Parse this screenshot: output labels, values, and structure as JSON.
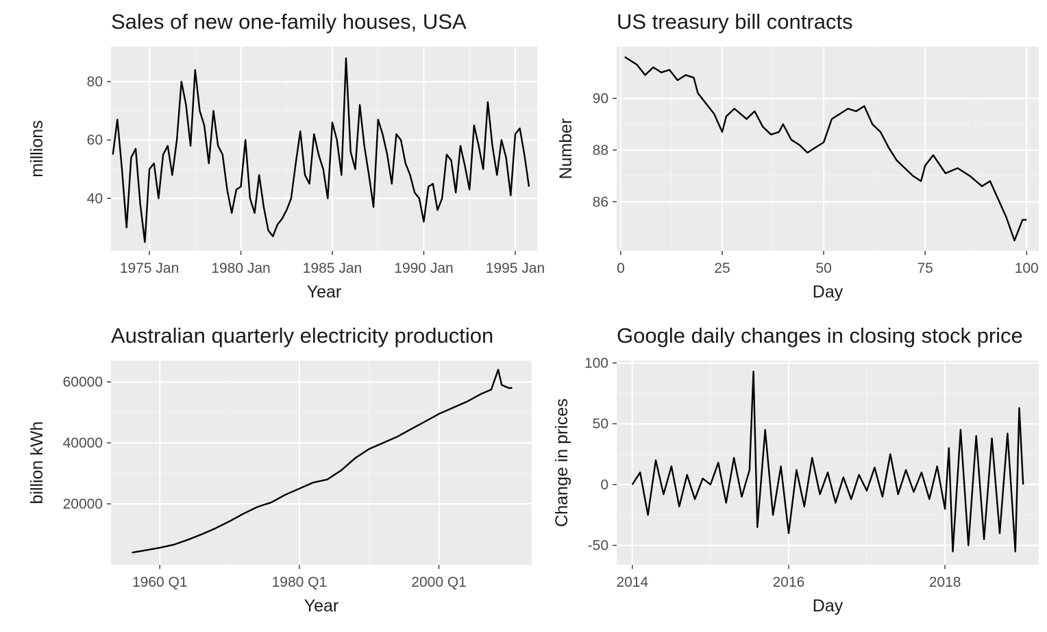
{
  "chart_data": [
    {
      "type": "line",
      "title": "Sales of new one-family houses, USA",
      "xlabel": "Year",
      "ylabel": "millions",
      "x_ticks": [
        "1975 Jan",
        "1980 Jan",
        "1985 Jan",
        "1990 Jan",
        "1995 Jan"
      ],
      "y_ticks": [
        "40",
        "60",
        "80"
      ],
      "xlim": [
        1972.9,
        1996.2
      ],
      "ylim": [
        22,
        92
      ],
      "grid": true,
      "series": [
        {
          "x": [
            1973.0,
            1973.25,
            1973.5,
            1973.75,
            1974.0,
            1974.25,
            1974.5,
            1974.75,
            1975.0,
            1975.25,
            1975.5,
            1975.75,
            1976.0,
            1976.25,
            1976.5,
            1976.75,
            1977.0,
            1977.25,
            1977.5,
            1977.75,
            1978.0,
            1978.25,
            1978.5,
            1978.75,
            1979.0,
            1979.25,
            1979.5,
            1979.75,
            1980.0,
            1980.25,
            1980.5,
            1980.75,
            1981.0,
            1981.25,
            1981.5,
            1981.75,
            1982.0,
            1982.25,
            1982.5,
            1982.75,
            1983.0,
            1983.25,
            1983.5,
            1983.75,
            1984.0,
            1984.25,
            1984.5,
            1984.75,
            1985.0,
            1985.25,
            1985.5,
            1985.75,
            1986.0,
            1986.25,
            1986.5,
            1986.75,
            1987.0,
            1987.25,
            1987.5,
            1987.75,
            1988.0,
            1988.25,
            1988.5,
            1988.75,
            1989.0,
            1989.25,
            1989.5,
            1989.75,
            1990.0,
            1990.25,
            1990.5,
            1990.75,
            1991.0,
            1991.25,
            1991.5,
            1991.75,
            1992.0,
            1992.25,
            1992.5,
            1992.75,
            1993.0,
            1993.25,
            1993.5,
            1993.75,
            1994.0,
            1994.25,
            1994.5,
            1994.75,
            1995.0,
            1995.25,
            1995.5,
            1995.75
          ],
          "values": [
            55,
            67,
            50,
            30,
            54,
            57,
            38,
            25,
            50,
            52,
            40,
            55,
            58,
            48,
            60,
            80,
            72,
            58,
            84,
            70,
            65,
            52,
            70,
            58,
            55,
            43,
            35,
            43,
            44,
            60,
            40,
            35,
            48,
            37,
            29,
            27,
            31,
            33,
            36,
            40,
            52,
            63,
            48,
            45,
            62,
            55,
            50,
            40,
            66,
            60,
            48,
            88,
            56,
            50,
            72,
            58,
            48,
            37,
            67,
            62,
            55,
            45,
            62,
            60,
            52,
            48,
            42,
            40,
            32,
            44,
            45,
            36,
            40,
            55,
            53,
            42,
            58,
            51,
            43,
            65,
            58,
            50,
            73,
            58,
            48,
            60,
            54,
            41,
            62,
            64,
            55,
            44
          ]
        }
      ]
    },
    {
      "type": "line",
      "title": "US treasury bill contracts",
      "xlabel": "Day",
      "ylabel": "Number",
      "x_ticks": [
        "0",
        "25",
        "50",
        "75",
        "100"
      ],
      "y_ticks": [
        "86",
        "88",
        "90"
      ],
      "xlim": [
        -1,
        103
      ],
      "ylim": [
        84.1,
        92.0
      ],
      "grid": true,
      "series": [
        {
          "x": [
            1,
            2,
            4,
            6,
            8,
            10,
            12,
            14,
            16,
            18,
            19,
            21,
            23,
            25,
            26,
            28,
            31,
            33,
            35,
            37,
            39,
            40,
            42,
            44,
            46,
            48,
            50,
            52,
            54,
            56,
            58,
            60,
            62,
            64,
            66,
            68,
            70,
            72,
            74,
            75,
            77,
            80,
            83,
            86,
            89,
            91,
            93,
            95,
            97,
            99,
            100
          ],
          "values": [
            91.6,
            91.5,
            91.3,
            90.9,
            91.2,
            91.0,
            91.1,
            90.7,
            90.9,
            90.8,
            90.2,
            89.8,
            89.4,
            88.7,
            89.3,
            89.6,
            89.2,
            89.5,
            88.9,
            88.6,
            88.7,
            89.0,
            88.4,
            88.2,
            87.9,
            88.1,
            88.3,
            89.2,
            89.4,
            89.6,
            89.5,
            89.7,
            89.0,
            88.7,
            88.1,
            87.6,
            87.3,
            87.0,
            86.8,
            87.4,
            87.8,
            87.1,
            87.3,
            87.0,
            86.6,
            86.8,
            86.1,
            85.4,
            84.5,
            85.3,
            85.3
          ]
        }
      ]
    },
    {
      "type": "line",
      "title": "Australian quarterly electricity production",
      "xlabel": "Year",
      "ylabel": "billion kWh",
      "x_ticks": [
        "1960 Q1",
        "1980 Q1",
        "2000 Q1"
      ],
      "y_ticks": [
        "20000",
        "40000",
        "60000"
      ],
      "xlim": [
        1953.0,
        2013.3
      ],
      "ylim": [
        0,
        67000
      ],
      "grid": true,
      "series": [
        {
          "x": [
            1956,
            1958,
            1960,
            1962,
            1964,
            1966,
            1968,
            1970,
            1972,
            1974,
            1976,
            1978,
            1980,
            1982,
            1984,
            1986,
            1988,
            1990,
            1992,
            1994,
            1996,
            1998,
            2000,
            2002,
            2004,
            2006,
            2007.5,
            2008.5,
            2009,
            2010,
            2010.5
          ],
          "values": [
            4000,
            4800,
            5600,
            6600,
            8200,
            10000,
            12000,
            14300,
            16800,
            19000,
            20500,
            23000,
            25000,
            27000,
            28000,
            31000,
            35000,
            38000,
            40000,
            42000,
            44500,
            47000,
            49500,
            51500,
            53500,
            56000,
            57500,
            64000,
            59000,
            58000,
            58000
          ]
        }
      ]
    },
    {
      "type": "line",
      "title": "Google daily changes in closing stock price",
      "xlabel": "Day",
      "ylabel": "Change in prices",
      "x_ticks": [
        "2014",
        "2016",
        "2018"
      ],
      "y_ticks": [
        "-50",
        "0",
        "50",
        "100"
      ],
      "xlim": [
        2013.8,
        2019.2
      ],
      "ylim": [
        -66,
        102
      ],
      "grid": true,
      "series": [
        {
          "x": [
            2014.0,
            2014.1,
            2014.2,
            2014.3,
            2014.4,
            2014.5,
            2014.6,
            2014.7,
            2014.8,
            2014.9,
            2015.0,
            2015.1,
            2015.2,
            2015.3,
            2015.4,
            2015.5,
            2015.55,
            2015.6,
            2015.7,
            2015.8,
            2015.9,
            2016.0,
            2016.1,
            2016.2,
            2016.3,
            2016.4,
            2016.5,
            2016.6,
            2016.7,
            2016.8,
            2016.9,
            2017.0,
            2017.1,
            2017.2,
            2017.3,
            2017.4,
            2017.5,
            2017.6,
            2017.7,
            2017.8,
            2017.9,
            2018.0,
            2018.05,
            2018.1,
            2018.2,
            2018.3,
            2018.4,
            2018.5,
            2018.6,
            2018.7,
            2018.8,
            2018.9,
            2018.95,
            2019.0
          ],
          "values": [
            0,
            10,
            -25,
            20,
            -8,
            15,
            -18,
            8,
            -12,
            5,
            0,
            18,
            -15,
            22,
            -10,
            12,
            93,
            -35,
            45,
            -25,
            15,
            -40,
            12,
            -18,
            22,
            -8,
            10,
            -15,
            6,
            -12,
            8,
            -5,
            14,
            -10,
            25,
            -8,
            12,
            -6,
            10,
            -12,
            15,
            -20,
            30,
            -55,
            45,
            -50,
            40,
            -45,
            38,
            -40,
            42,
            -55,
            63,
            0
          ]
        }
      ]
    }
  ]
}
